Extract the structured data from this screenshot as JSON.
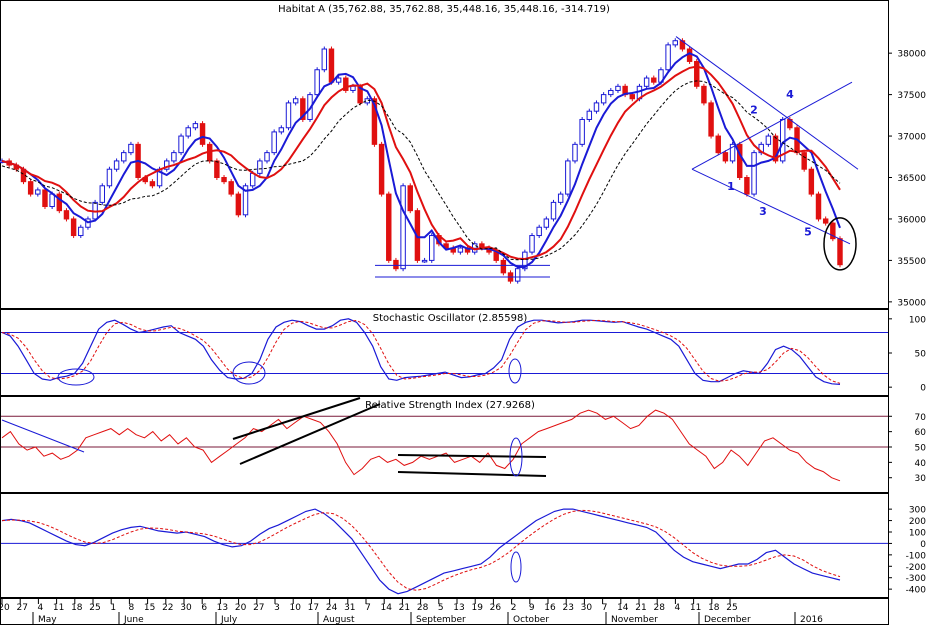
{
  "chart_data": [
    {
      "type": "line",
      "panel": "price",
      "title": "Habitat A (35,762.88, 35,762.88, 35,448.16, 35,448.16, -314.719)",
      "y_ticks": [
        35000,
        35500,
        36000,
        36500,
        37000,
        37500,
        38000
      ],
      "ylim": [
        34950,
        38400
      ],
      "chart_style": "candlestick",
      "colors": {
        "up": "#1a1ad6",
        "down": "#e01010",
        "ma_fast": "#1a1ad6",
        "ma_slow": "#e01010",
        "ma_long": "#000000"
      },
      "annotations": [
        "1",
        "2",
        "3",
        "4",
        "5"
      ],
      "series": [
        {
          "name": "Close",
          "values": [
            36700,
            36650,
            36600,
            36450,
            36300,
            36350,
            36150,
            36300,
            36100,
            36000,
            35800,
            35900,
            36000,
            36200,
            36400,
            36600,
            36700,
            36800,
            36900,
            36500,
            36450,
            36400,
            36600,
            36700,
            36800,
            37000,
            37100,
            37150,
            36900,
            36700,
            36500,
            36450,
            36300,
            36050,
            36400,
            36550,
            36700,
            36800,
            37050,
            37100,
            37400,
            37450,
            37200,
            37500,
            37800,
            38050,
            37650,
            37700,
            37550,
            37600,
            37400,
            37450,
            36900,
            36300,
            35500,
            35400,
            36400,
            36100,
            35500,
            35500,
            35800,
            35700,
            35650,
            35600,
            35650,
            35600,
            35700,
            35650,
            35600,
            35500,
            35350,
            35250,
            35400,
            35600,
            35800,
            35900,
            36000,
            36200,
            36300,
            36700,
            36900,
            37200,
            37300,
            37400,
            37500,
            37550,
            37600,
            37500,
            37450,
            37600,
            37700,
            37650,
            37800,
            38100,
            38150,
            38050,
            37900,
            37600,
            37400,
            37000,
            36800,
            36700,
            36900,
            36500,
            36300,
            36800,
            36900,
            37000,
            36700,
            37200,
            37100,
            36800,
            36600,
            36300,
            36000,
            35950,
            35762,
            35448
          ]
        }
      ]
    },
    {
      "type": "line",
      "panel": "stochastic",
      "title": "Stochastic Oscillator (2.85598)",
      "y_ticks": [
        0,
        50,
        100
      ],
      "ylim": [
        -10,
        110
      ],
      "reference_lines": [
        20,
        80
      ],
      "series": [
        {
          "name": "%K",
          "values": [
            80,
            75,
            60,
            40,
            20,
            12,
            10,
            14,
            16,
            20,
            35,
            60,
            85,
            95,
            98,
            92,
            85,
            80,
            82,
            85,
            88,
            90,
            80,
            75,
            70,
            60,
            40,
            25,
            14,
            12,
            13,
            20,
            40,
            70,
            88,
            95,
            98,
            96,
            90,
            85,
            85,
            90,
            98,
            100,
            95,
            80,
            60,
            30,
            12,
            10,
            14,
            15,
            16,
            18,
            20,
            22,
            18,
            14,
            15,
            18,
            20,
            28,
            40,
            70,
            88,
            95,
            98,
            98,
            96,
            94,
            95,
            96,
            98,
            98,
            97,
            96,
            95,
            96,
            92,
            88,
            85,
            80,
            75,
            70,
            60,
            40,
            20,
            10,
            8,
            8,
            14,
            20,
            24,
            22,
            20,
            35,
            55,
            60,
            55,
            45,
            30,
            15,
            8,
            5,
            4
          ]
        }
      ]
    },
    {
      "type": "line",
      "panel": "rsi",
      "title": "Relative Strength Index (27.9268)",
      "y_ticks": [
        30,
        40,
        50,
        60,
        70
      ],
      "ylim": [
        22,
        78
      ],
      "reference_lines": [
        50,
        70
      ],
      "series": [
        {
          "name": "RSI",
          "values": [
            56,
            60,
            52,
            48,
            50,
            44,
            46,
            42,
            44,
            48,
            56,
            58,
            60,
            62,
            58,
            62,
            58,
            56,
            60,
            54,
            58,
            52,
            56,
            50,
            48,
            40,
            44,
            48,
            52,
            56,
            62,
            60,
            64,
            68,
            62,
            66,
            70,
            68,
            66,
            60,
            52,
            40,
            32,
            36,
            42,
            44,
            40,
            42,
            38,
            40,
            44,
            42,
            44,
            46,
            40,
            42,
            44,
            40,
            46,
            38,
            36,
            42,
            52,
            56,
            60,
            62,
            64,
            66,
            68,
            72,
            74,
            72,
            68,
            70,
            66,
            62,
            64,
            70,
            74,
            72,
            68,
            60,
            52,
            48,
            44,
            36,
            40,
            48,
            44,
            38,
            46,
            54,
            56,
            52,
            48,
            46,
            40,
            36,
            34,
            30,
            28
          ]
        }
      ]
    },
    {
      "type": "line",
      "panel": "oscillator",
      "title": "",
      "y_ticks": [
        -400,
        -300,
        -200,
        -100,
        0,
        100,
        200,
        300
      ],
      "ylim": [
        -460,
        380
      ],
      "reference_lines": [
        0
      ],
      "series": [
        {
          "name": "Line",
          "values": [
            200,
            210,
            200,
            180,
            140,
            100,
            60,
            20,
            -10,
            -20,
            10,
            50,
            90,
            120,
            140,
            150,
            130,
            110,
            100,
            90,
            100,
            80,
            60,
            20,
            -10,
            -30,
            -20,
            20,
            80,
            130,
            160,
            200,
            240,
            280,
            300,
            260,
            200,
            120,
            40,
            -80,
            -200,
            -320,
            -400,
            -440,
            -420,
            -380,
            -340,
            -300,
            -260,
            -240,
            -220,
            -200,
            -180,
            -120,
            -40,
            20,
            80,
            140,
            200,
            240,
            280,
            300,
            300,
            280,
            260,
            240,
            220,
            200,
            180,
            160,
            140,
            100,
            20,
            -60,
            -120,
            -160,
            -180,
            -200,
            -220,
            -200,
            -180,
            -180,
            -140,
            -80,
            -60,
            -120,
            -180,
            -220,
            -260,
            -280,
            -300,
            -320
          ]
        }
      ]
    }
  ],
  "axis": {
    "x_tick_labels": [
      "20",
      "27",
      "4",
      "11",
      "18",
      "25",
      "1",
      "8",
      "15",
      "22",
      "30",
      "6",
      "13",
      "20",
      "27",
      "3",
      "10",
      "17",
      "24",
      "31",
      "7",
      "14",
      "21",
      "28",
      "5",
      "13",
      "19",
      "26",
      "2",
      "9",
      "16",
      "23",
      "30",
      "7",
      "14",
      "21",
      "28",
      "4",
      "11",
      "18",
      "25"
    ],
    "month_labels": [
      "May",
      "June",
      "July",
      "August",
      "September",
      "October",
      "November",
      "December",
      "2016"
    ]
  }
}
